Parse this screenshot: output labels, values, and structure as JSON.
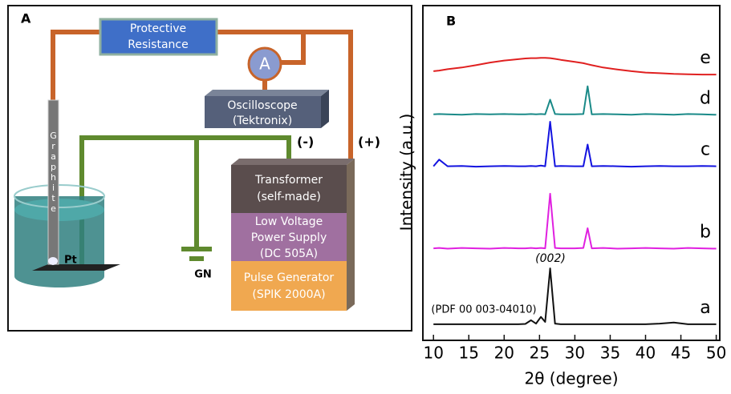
{
  "panel_a": {
    "label": "A",
    "resistor": [
      "Protective",
      "Resistance"
    ],
    "ammeter": "A",
    "oscilloscope": [
      "Oscilloscope",
      "(Tektronix)"
    ],
    "minus": "(-)",
    "plus": "(+)",
    "graphite": "Graphite",
    "pt": "Pt",
    "ground": "GN",
    "transformer": [
      "Transformer",
      "(self-made)"
    ],
    "power_supply": [
      "Low Voltage",
      "Power Supply",
      "(DC 505A)"
    ],
    "pulse_generator": [
      "Pulse Generator",
      "(SPIK 2000A)"
    ]
  },
  "chart_data": {
    "type": "line",
    "label": "B",
    "x_label": "2θ (degree)",
    "y_label": "Intensity (a.u.)",
    "annotations": [
      "(002)",
      "(PDF 00 003-04010)"
    ],
    "xlim": [
      8.5,
      50.5
    ],
    "xticks": [
      10,
      15,
      20,
      25,
      30,
      35,
      40,
      45,
      50
    ],
    "ylim": [
      0,
      100
    ],
    "x": [
      10,
      10.8,
      12,
      14,
      16,
      18,
      20,
      22,
      23,
      23.8,
      24.5,
      25.2,
      25.8,
      26.5,
      27.2,
      28,
      30,
      31.2,
      31.8,
      32.4,
      34,
      36,
      38,
      40,
      42,
      44,
      46,
      48,
      50
    ],
    "series": [
      {
        "name": "a",
        "color": "#111111",
        "values": [
          4.8,
          4.8,
          4.8,
          4.8,
          4.8,
          4.8,
          4.8,
          4.8,
          4.9,
          6,
          5,
          7,
          5.5,
          21.5,
          5,
          4.8,
          4.8,
          4.8,
          4.8,
          4.8,
          4.8,
          4.8,
          4.8,
          4.8,
          5,
          5.3,
          4.8,
          4.8,
          4.8
        ]
      },
      {
        "name": "b",
        "color": "#e020e0",
        "values": [
          27.5,
          27.6,
          27.4,
          27.6,
          27.5,
          27.4,
          27.6,
          27.5,
          27.5,
          27.6,
          27.5,
          27.6,
          27.5,
          43.8,
          27.6,
          27.5,
          27.5,
          27.6,
          33.5,
          27.5,
          27.6,
          27.4,
          27.5,
          27.6,
          27.5,
          27.4,
          27.6,
          27.5,
          27.4
        ]
      },
      {
        "name": "c",
        "color": "#1414e0",
        "values": [
          52,
          54,
          52,
          52.1,
          51.9,
          52,
          52.1,
          52,
          52,
          52.1,
          52,
          52.2,
          52,
          65.3,
          52,
          52.1,
          52,
          52,
          58.5,
          52,
          52.1,
          52,
          51.9,
          52,
          52.1,
          52,
          52,
          52.1,
          52
        ]
      },
      {
        "name": "d",
        "color": "#1a8a88",
        "values": [
          67.5,
          67.6,
          67.5,
          67.4,
          67.6,
          67.5,
          67.6,
          67.5,
          67.5,
          67.6,
          67.5,
          67.6,
          67.5,
          71.9,
          67.6,
          67.5,
          67.5,
          67.6,
          75.9,
          67.5,
          67.6,
          67.5,
          67.4,
          67.6,
          67.5,
          67.4,
          67.6,
          67.5,
          67.4
        ]
      },
      {
        "name": "e",
        "color": "#e02020",
        "values": [
          80.4,
          80.6,
          81,
          81.5,
          82.2,
          83,
          83.6,
          84,
          84.2,
          84.3,
          84.3,
          84.4,
          84.4,
          84.3,
          84.1,
          83.8,
          83.2,
          82.8,
          82.5,
          82.2,
          81.5,
          80.9,
          80.4,
          80,
          79.8,
          79.6,
          79.5,
          79.4,
          79.4
        ]
      }
    ]
  }
}
